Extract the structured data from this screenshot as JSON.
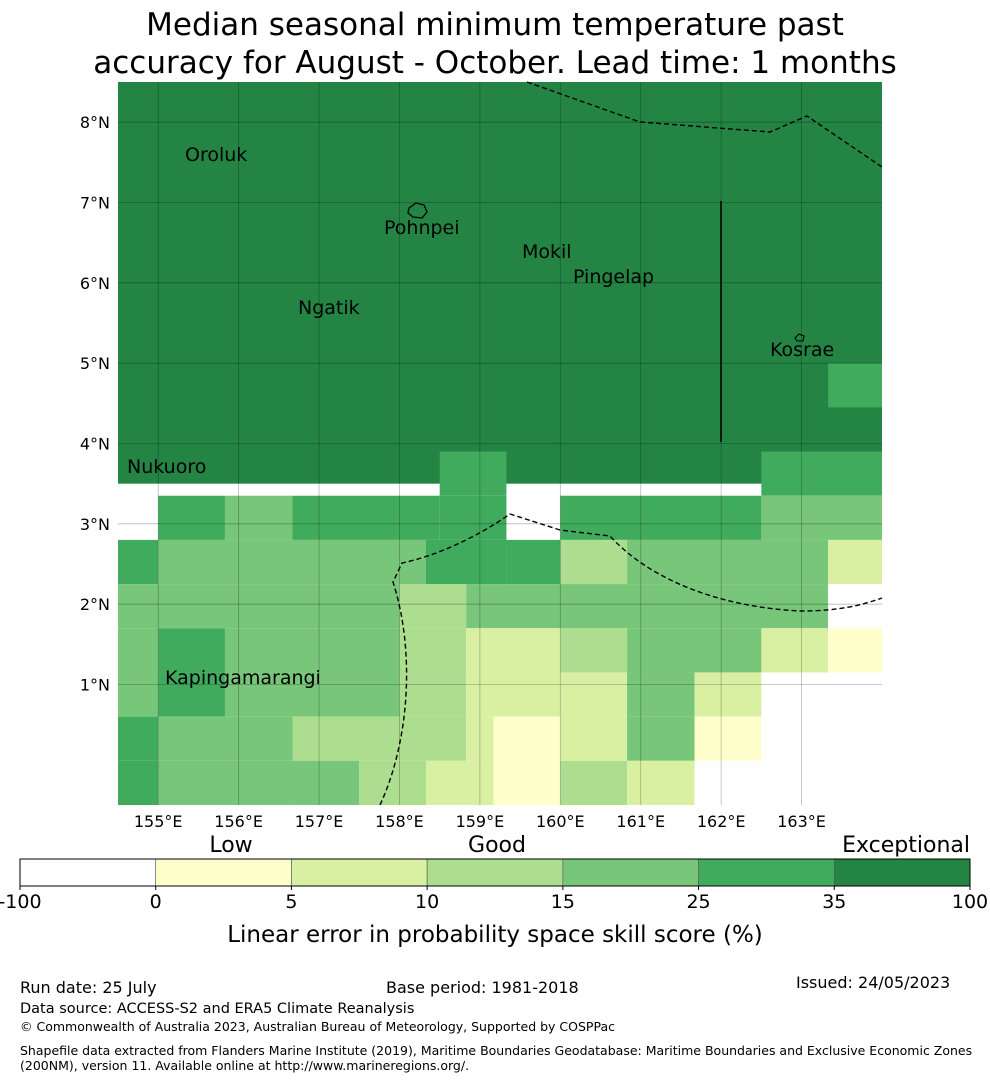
{
  "title": {
    "line1": "Median seasonal minimum temperature past",
    "line2": "accuracy for August - October. Lead time: 1 months"
  },
  "map": {
    "lat_ticks": [
      "8°N",
      "7°N",
      "6°N",
      "5°N",
      "4°N",
      "3°N",
      "2°N",
      "1°N"
    ],
    "lon_ticks": [
      "155°E",
      "156°E",
      "157°E",
      "158°E",
      "159°E",
      "160°E",
      "161°E",
      "162°E",
      "163°E"
    ],
    "places": [
      "Oroluk",
      "Pohnpei",
      "Mokil",
      "Pingelap",
      "Ngatik",
      "Kosrae",
      "Nukuoro",
      "Kapingamarangi"
    ],
    "extent": {
      "lon": [
        154.5,
        164.0
      ],
      "lat": [
        0.0,
        8.5
      ]
    },
    "grid_cells": [
      {
        "lat_range": [
          3.5,
          8.5
        ],
        "lon_range": [
          154.5,
          164.0
        ],
        "category": 6
      },
      {
        "lat_range": [
          4.45,
          5.0
        ],
        "lon_range": [
          163.33,
          164.0
        ],
        "category": 5
      },
      {
        "lat_range": [
          3.35,
          3.9
        ],
        "lon_range": [
          158.5,
          159.33
        ],
        "category": 5
      },
      {
        "lat_range": [
          3.35,
          3.9
        ],
        "lon_range": [
          162.5,
          164.0
        ],
        "category": 5
      },
      {
        "lat_range": [
          2.8,
          3.35
        ],
        "lon_range": [
          155.0,
          155.83
        ],
        "category": 5
      },
      {
        "lat_range": [
          2.8,
          3.35
        ],
        "lon_range": [
          155.83,
          156.67
        ],
        "category": 4
      },
      {
        "lat_range": [
          2.8,
          3.35
        ],
        "lon_range": [
          156.67,
          158.5
        ],
        "category": 5
      },
      {
        "lat_range": [
          2.8,
          3.35
        ],
        "lon_range": [
          158.5,
          159.33
        ],
        "category": 5
      },
      {
        "lat_range": [
          2.8,
          3.35
        ],
        "lon_range": [
          160.0,
          162.5
        ],
        "category": 5
      },
      {
        "lat_range": [
          2.8,
          3.35
        ],
        "lon_range": [
          162.5,
          164.0
        ],
        "category": 4
      },
      {
        "lat_range": [
          2.25,
          2.8
        ],
        "lon_range": [
          154.5,
          155.0
        ],
        "category": 5
      },
      {
        "lat_range": [
          2.25,
          2.8
        ],
        "lon_range": [
          155.0,
          159.33
        ],
        "category": 4
      },
      {
        "lat_range": [
          2.25,
          2.8
        ],
        "lon_range": [
          159.33,
          160.0
        ],
        "category": 5
      },
      {
        "lat_range": [
          2.25,
          2.8
        ],
        "lon_range": [
          158.33,
          159.33
        ],
        "category": 5
      },
      {
        "lat_range": [
          2.25,
          2.8
        ],
        "lon_range": [
          160.0,
          160.83
        ],
        "category": 3
      },
      {
        "lat_range": [
          2.25,
          2.8
        ],
        "lon_range": [
          160.83,
          163.33
        ],
        "category": 4
      },
      {
        "lat_range": [
          2.25,
          2.8
        ],
        "lon_range": [
          163.33,
          164.0
        ],
        "category": 2
      },
      {
        "lat_range": [
          1.7,
          2.25
        ],
        "lon_range": [
          154.5,
          158.0
        ],
        "category": 4
      },
      {
        "lat_range": [
          1.7,
          2.25
        ],
        "lon_range": [
          158.0,
          158.83
        ],
        "category": 3
      },
      {
        "lat_range": [
          1.7,
          2.25
        ],
        "lon_range": [
          158.83,
          163.33
        ],
        "category": 4
      },
      {
        "lat_range": [
          1.7,
          2.25
        ],
        "lon_range": [
          163.33,
          164.0
        ],
        "category": 0
      },
      {
        "lat_range": [
          1.15,
          1.7
        ],
        "lon_range": [
          154.5,
          155.0
        ],
        "category": 4
      },
      {
        "lat_range": [
          1.15,
          1.7
        ],
        "lon_range": [
          155.0,
          155.83
        ],
        "category": 5
      },
      {
        "lat_range": [
          1.15,
          1.7
        ],
        "lon_range": [
          155.83,
          158.0
        ],
        "category": 4
      },
      {
        "lat_range": [
          1.15,
          1.7
        ],
        "lon_range": [
          158.0,
          158.83
        ],
        "category": 3
      },
      {
        "lat_range": [
          1.15,
          1.7
        ],
        "lon_range": [
          158.83,
          160.0
        ],
        "category": 2
      },
      {
        "lat_range": [
          1.15,
          1.7
        ],
        "lon_range": [
          160.0,
          160.83
        ],
        "category": 3
      },
      {
        "lat_range": [
          1.15,
          1.7
        ],
        "lon_range": [
          160.83,
          162.5
        ],
        "category": 4
      },
      {
        "lat_range": [
          1.15,
          1.7
        ],
        "lon_range": [
          162.5,
          163.33
        ],
        "category": 2
      },
      {
        "lat_range": [
          1.15,
          1.7
        ],
        "lon_range": [
          163.33,
          164.0
        ],
        "category": 1
      },
      {
        "lat_range": [
          0.6,
          1.15
        ],
        "lon_range": [
          154.5,
          155.0
        ],
        "category": 4
      },
      {
        "lat_range": [
          0.6,
          1.15
        ],
        "lon_range": [
          155.0,
          155.83
        ],
        "category": 5
      },
      {
        "lat_range": [
          0.6,
          1.15
        ],
        "lon_range": [
          155.83,
          158.0
        ],
        "category": 4
      },
      {
        "lat_range": [
          0.6,
          1.15
        ],
        "lon_range": [
          158.0,
          158.83
        ],
        "category": 3
      },
      {
        "lat_range": [
          0.6,
          1.15
        ],
        "lon_range": [
          158.83,
          160.0
        ],
        "category": 2
      },
      {
        "lat_range": [
          0.6,
          1.15
        ],
        "lon_range": [
          160.0,
          160.83
        ],
        "category": 2
      },
      {
        "lat_range": [
          0.6,
          1.15
        ],
        "lon_range": [
          160.83,
          161.67
        ],
        "category": 4
      },
      {
        "lat_range": [
          0.6,
          1.15
        ],
        "lon_range": [
          161.67,
          162.5
        ],
        "category": 2
      },
      {
        "lat_range": [
          0.6,
          1.15
        ],
        "lon_range": [
          162.5,
          164.0
        ],
        "category": 0
      },
      {
        "lat_range": [
          0.05,
          0.6
        ],
        "lon_range": [
          154.5,
          155.0
        ],
        "category": 5
      },
      {
        "lat_range": [
          0.05,
          0.6
        ],
        "lon_range": [
          155.0,
          156.67
        ],
        "category": 4
      },
      {
        "lat_range": [
          0.05,
          0.6
        ],
        "lon_range": [
          156.67,
          158.0
        ],
        "category": 3
      },
      {
        "lat_range": [
          0.05,
          0.6
        ],
        "lon_range": [
          158.0,
          158.83
        ],
        "category": 3
      },
      {
        "lat_range": [
          0.05,
          0.6
        ],
        "lon_range": [
          158.83,
          159.17
        ],
        "category": 2
      },
      {
        "lat_range": [
          0.05,
          0.6
        ],
        "lon_range": [
          159.17,
          160.0
        ],
        "category": 1
      },
      {
        "lat_range": [
          0.05,
          0.6
        ],
        "lon_range": [
          160.0,
          160.83
        ],
        "category": 2
      },
      {
        "lat_range": [
          0.05,
          0.6
        ],
        "lon_range": [
          160.83,
          161.67
        ],
        "category": 4
      },
      {
        "lat_range": [
          0.05,
          0.6
        ],
        "lon_range": [
          161.67,
          162.5
        ],
        "category": 1
      },
      {
        "lat_range": [
          0.05,
          0.6
        ],
        "lon_range": [
          162.5,
          164.0
        ],
        "category": 0
      },
      {
        "lat_range": [
          -0.5,
          0.05
        ],
        "lon_range": [
          154.5,
          155.0
        ],
        "category": 5
      },
      {
        "lat_range": [
          -0.5,
          0.05
        ],
        "lon_range": [
          155.0,
          156.67
        ],
        "category": 4
      },
      {
        "lat_range": [
          -0.5,
          0.05
        ],
        "lon_range": [
          156.67,
          157.5
        ],
        "category": 4
      },
      {
        "lat_range": [
          -0.5,
          0.05
        ],
        "lon_range": [
          157.5,
          158.33
        ],
        "category": 3
      },
      {
        "lat_range": [
          -0.5,
          0.05
        ],
        "lon_range": [
          158.33,
          159.17
        ],
        "category": 2
      },
      {
        "lat_range": [
          -0.5,
          0.05
        ],
        "lon_range": [
          159.17,
          160.0
        ],
        "category": 1
      },
      {
        "lat_range": [
          -0.5,
          0.05
        ],
        "lon_range": [
          160.0,
          160.83
        ],
        "category": 3
      },
      {
        "lat_range": [
          -0.5,
          0.05
        ],
        "lon_range": [
          160.83,
          161.67
        ],
        "category": 2
      },
      {
        "lat_range": [
          -0.5,
          0.05
        ],
        "lon_range": [
          161.67,
          164.0
        ],
        "category": 0
      }
    ]
  },
  "colorbar": {
    "qualitative": [
      "Low",
      "Good",
      "Exceptional"
    ],
    "tick_labels": [
      "-100",
      "0",
      "5",
      "10",
      "15",
      "25",
      "35",
      "100"
    ],
    "colors": [
      "#ffffff",
      "#ffffcc",
      "#d9f0a3",
      "#addd8e",
      "#78c679",
      "#41ab5d",
      "#238443"
    ],
    "label": "Linear error in probability space skill score (%)"
  },
  "footer": {
    "run_date": "Run date: 25 July",
    "base_period": "Base period: 1981-2018",
    "issued": "Issued: 24/05/2023",
    "data_source": "Data source: ACCESS-S2 and ERA5 Climate Reanalysis",
    "copyright": "© Commonwealth of Australia 2023, Australian Bureau of Meteorology, Supported by COSPPac",
    "shapefile": "Shapefile data extracted from Flanders Marine Institute (2019), Maritime Boundaries Geodatabase: Maritime Boundaries and Exclusive Economic Zones",
    "shapefile2": "(200NM), version 11. Available online at http://www.marineregions.org/."
  }
}
